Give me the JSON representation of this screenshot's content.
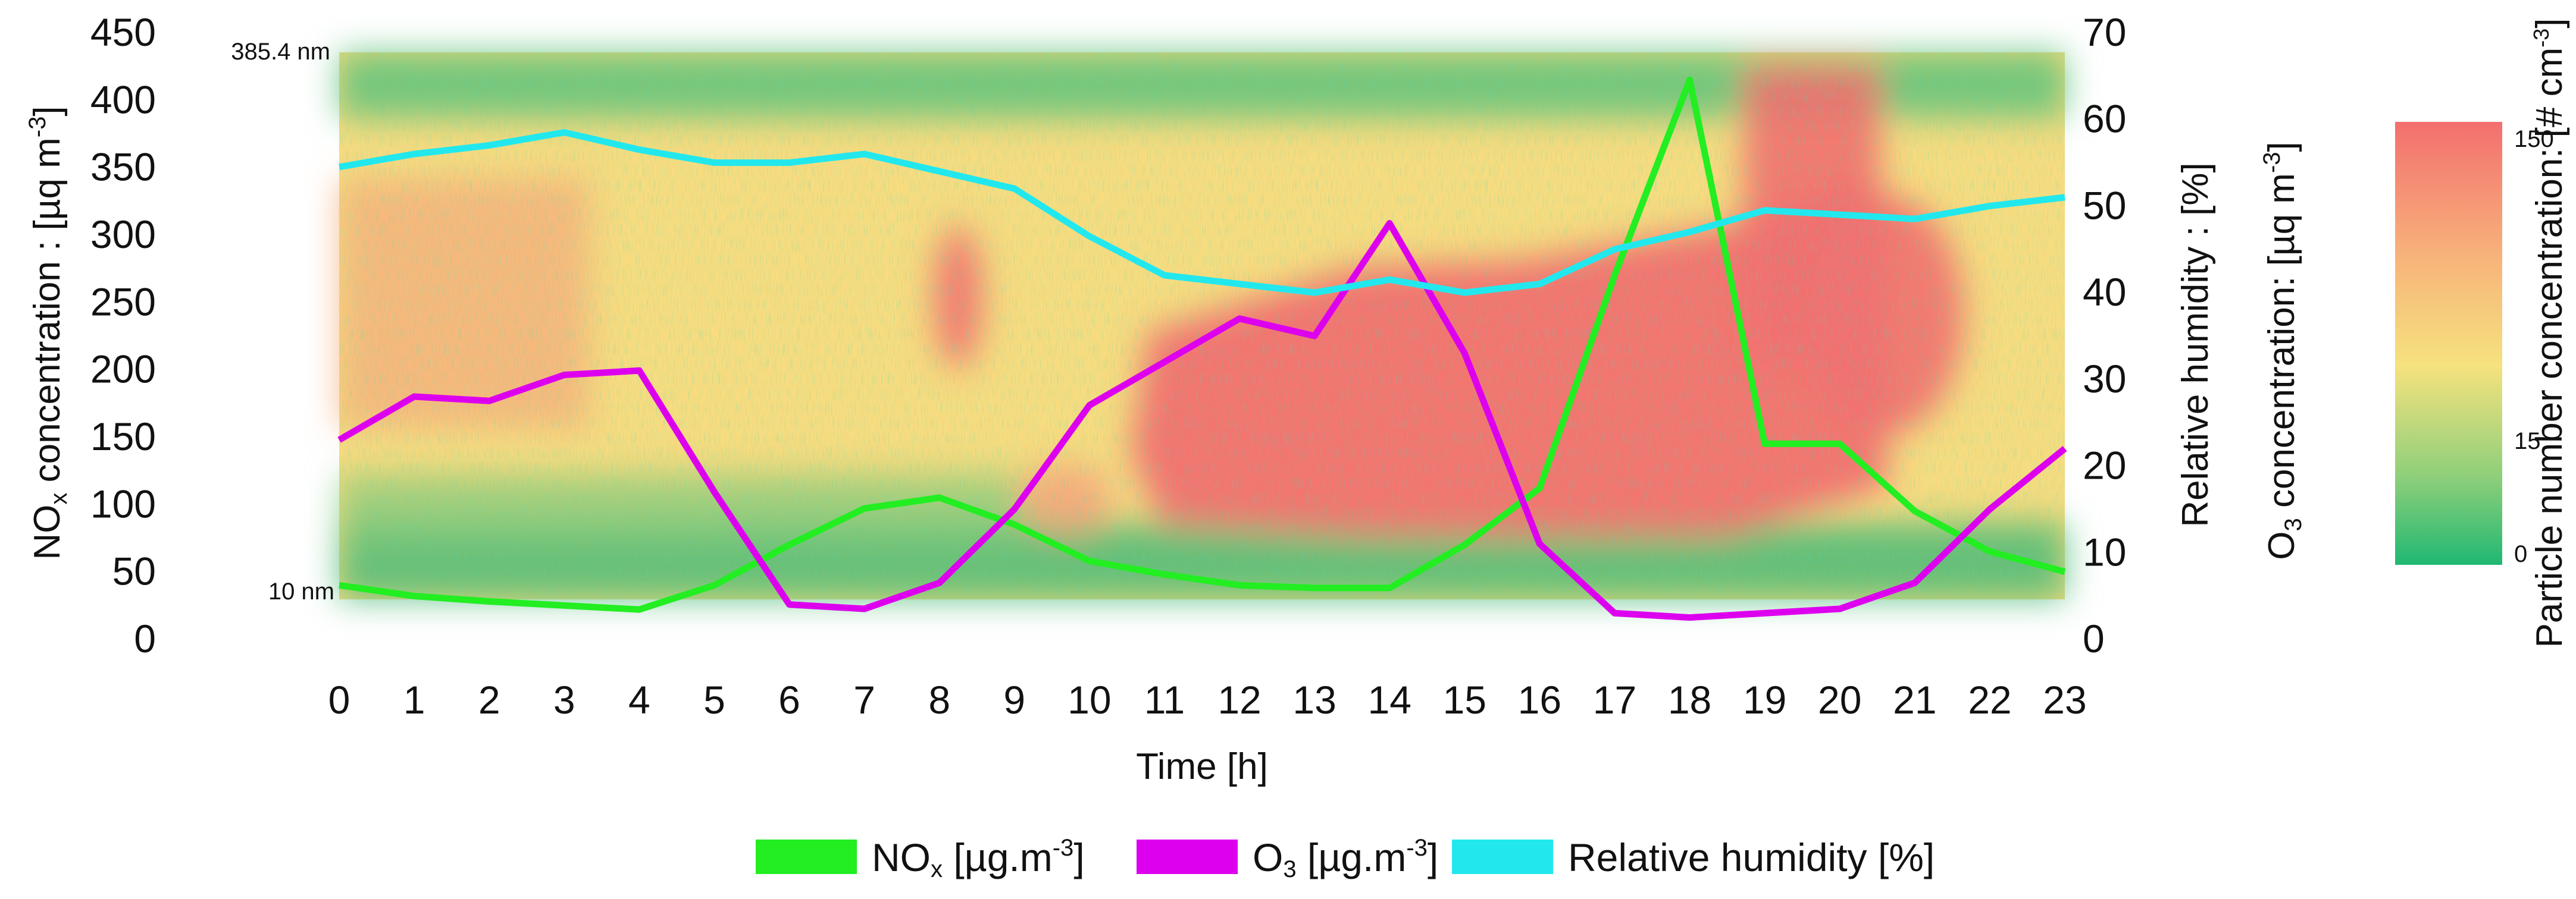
{
  "chart_data": {
    "type": "heatmap",
    "title": "",
    "xlabel": "Time [h]",
    "x_ticks": [
      "0",
      "1",
      "2",
      "3",
      "4",
      "5",
      "6",
      "7",
      "8",
      "9",
      "10",
      "11",
      "12",
      "13",
      "14",
      "15",
      "16",
      "17",
      "18",
      "19",
      "20",
      "21",
      "22",
      "23"
    ],
    "xlim": [
      0,
      23
    ],
    "left_axis": {
      "label_main": "NO",
      "label_sub": "x",
      "label_rest": " concentration : [µq m",
      "label_sup": "-3",
      "label_end": "]",
      "ticks": [
        "0",
        "50",
        "100",
        "150",
        "200",
        "250",
        "300",
        "350",
        "400",
        "450"
      ],
      "ylim": [
        0,
        450
      ]
    },
    "right_axis": {
      "label_line1": "Relative humidity : [%]",
      "label2_main": "O",
      "label2_sub": "3",
      "label2_rest": " concentration: [µq m",
      "label2_sup": "-3",
      "label2_end": "]",
      "ticks": [
        "0",
        "10",
        "20",
        "30",
        "40",
        "50",
        "60",
        "70"
      ],
      "ylim": [
        0,
        70
      ]
    },
    "size_axis": {
      "top_label": "385.4 nm",
      "bottom_label": "10 nm"
    },
    "colorbar": {
      "label_main": "Particle number concentration: [# cm",
      "label_sup": "-3",
      "label_end": "]",
      "ticks": [
        "0",
        "15",
        "150"
      ],
      "colors": [
        "#20b872",
        "#8fcf7a",
        "#f6e27e",
        "#f7b27a",
        "#f36f6f"
      ]
    },
    "series": [
      {
        "name": "NOx",
        "axis": "left",
        "color": "#22ee22",
        "values": [
          40,
          32,
          28,
          25,
          22,
          40,
          70,
          97,
          105,
          85,
          58,
          48,
          40,
          38,
          38,
          70,
          112,
          270,
          415,
          145,
          145,
          95,
          65,
          50
        ]
      },
      {
        "name": "O3",
        "axis": "right",
        "color": "#dd00ee",
        "values": [
          23,
          28,
          27.5,
          30.5,
          31,
          17,
          4,
          3.5,
          6.5,
          15,
          27,
          32,
          37,
          35,
          48,
          33,
          11,
          3,
          2.5,
          3,
          3.5,
          6.5,
          15,
          22
        ]
      },
      {
        "name": "Relative humidity",
        "axis": "right",
        "color": "#22e8ee",
        "values": [
          54.5,
          56,
          57,
          58.5,
          56.5,
          55,
          55,
          56,
          54,
          52,
          46.5,
          42,
          41,
          40,
          41.5,
          40,
          41,
          45,
          47,
          49.5,
          49,
          48.5,
          50,
          51
        ]
      }
    ],
    "legend": [
      {
        "key": "nox",
        "color": "#22ee22",
        "main": "NO",
        "sub": "x",
        "rest": "  [µg.m",
        "sup": "-3",
        "end": "]"
      },
      {
        "key": "o3",
        "color": "#dd00ee",
        "main": "O",
        "sub": "3",
        "rest": "  [µg.m",
        "sup": "-3",
        "end": "]"
      },
      {
        "key": "rh",
        "color": "#22e8ee",
        "main": "Relative humidity [%]",
        "sub": "",
        "rest": "",
        "sup": "",
        "end": ""
      }
    ],
    "heatmap_description_values": {
      "hours": [
        0,
        1,
        2,
        3,
        4,
        5,
        6,
        7,
        8,
        9,
        10,
        11,
        12,
        13,
        14,
        15,
        16,
        17,
        18,
        19,
        20,
        21,
        22,
        23
      ]
    }
  }
}
